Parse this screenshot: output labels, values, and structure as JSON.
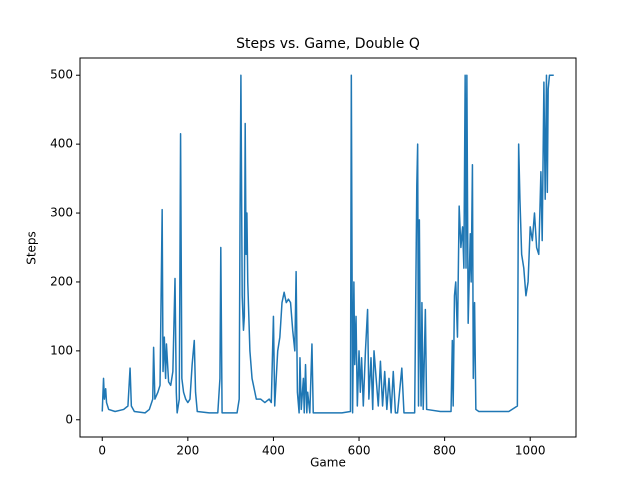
{
  "chart_data": {
    "type": "line",
    "title": "Steps vs. Game, Double Q",
    "x_label": "Game",
    "y_label": "Steps",
    "x": [
      0,
      3,
      5,
      8,
      10,
      15,
      30,
      50,
      60,
      65,
      68,
      75,
      100,
      110,
      118,
      120,
      123,
      130,
      135,
      140,
      142,
      145,
      148,
      150,
      155,
      160,
      165,
      170,
      173,
      175,
      180,
      183,
      186,
      190,
      195,
      200,
      205,
      210,
      215,
      218,
      222,
      250,
      270,
      275,
      277,
      280,
      300,
      315,
      320,
      322,
      324,
      327,
      330,
      332,
      334,
      336,
      338,
      340,
      345,
      350,
      360,
      370,
      380,
      390,
      395,
      400,
      403,
      410,
      415,
      420,
      425,
      430,
      435,
      440,
      445,
      450,
      453,
      456,
      460,
      462,
      465,
      470,
      472,
      475,
      478,
      480,
      485,
      490,
      493,
      520,
      560,
      580,
      582,
      585,
      588,
      590,
      593,
      596,
      600,
      603,
      606,
      610,
      615,
      620,
      623,
      628,
      632,
      635,
      640,
      645,
      650,
      655,
      660,
      665,
      670,
      675,
      680,
      685,
      690,
      700,
      705,
      730,
      735,
      737,
      739,
      741,
      743,
      745,
      747,
      750,
      755,
      758,
      790,
      815,
      818,
      820,
      823,
      826,
      830,
      834,
      838,
      842,
      845,
      848,
      850,
      852,
      855,
      860,
      862,
      865,
      867,
      870,
      873,
      880,
      950,
      970,
      973,
      976,
      980,
      985,
      990,
      995,
      1000,
      1005,
      1010,
      1015,
      1020,
      1025,
      1028,
      1032,
      1035,
      1038,
      1040,
      1042,
      1045,
      1050,
      1055
    ],
    "series": [
      {
        "name": "Steps",
        "color": "#1f77b4",
        "values": [
          12,
          60,
          30,
          45,
          25,
          15,
          12,
          15,
          20,
          75,
          20,
          12,
          10,
          15,
          30,
          105,
          30,
          40,
          50,
          305,
          70,
          120,
          60,
          110,
          55,
          50,
          70,
          205,
          40,
          10,
          30,
          415,
          60,
          40,
          30,
          25,
          30,
          80,
          115,
          40,
          12,
          10,
          10,
          60,
          250,
          10,
          10,
          10,
          30,
          300,
          500,
          180,
          130,
          150,
          430,
          240,
          300,
          200,
          100,
          60,
          30,
          30,
          25,
          30,
          25,
          150,
          20,
          100,
          120,
          170,
          185,
          170,
          175,
          170,
          130,
          100,
          215,
          40,
          10,
          90,
          15,
          60,
          10,
          80,
          10,
          40,
          10,
          110,
          10,
          10,
          10,
          12,
          500,
          10,
          200,
          80,
          150,
          20,
          100,
          40,
          90,
          20,
          100,
          160,
          30,
          90,
          15,
          100,
          60,
          20,
          85,
          20,
          70,
          15,
          60,
          10,
          70,
          10,
          10,
          75,
          10,
          10,
          340,
          400,
          20,
          290,
          110,
          20,
          170,
          15,
          160,
          15,
          12,
          12,
          115,
          20,
          180,
          200,
          120,
          310,
          250,
          280,
          220,
          500,
          220,
          500,
          140,
          270,
          200,
          370,
          60,
          170,
          15,
          12,
          12,
          20,
          400,
          320,
          240,
          220,
          180,
          200,
          280,
          260,
          300,
          250,
          240,
          360,
          260,
          490,
          320,
          500,
          330,
          480,
          500,
          500,
          500
        ]
      }
    ],
    "xlim": [
      -52,
      1107
    ],
    "ylim": [
      -25,
      525
    ],
    "xticks": [
      0,
      200,
      400,
      600,
      800,
      1000
    ],
    "yticks": [
      0,
      100,
      200,
      300,
      400,
      500
    ]
  }
}
